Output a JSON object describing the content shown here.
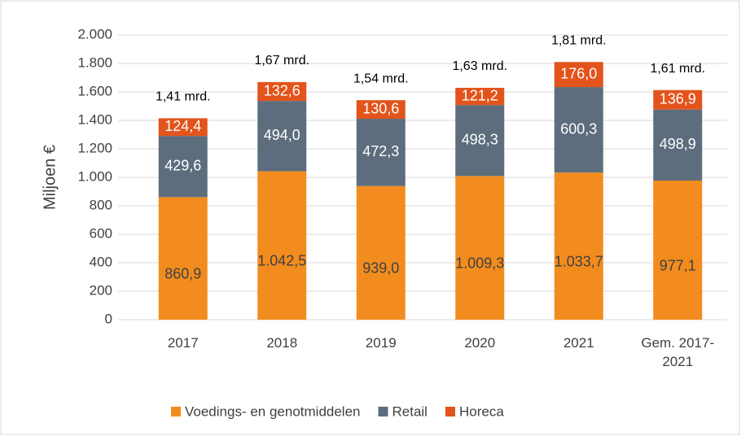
{
  "chart_data": {
    "type": "stacked_bar",
    "categories": [
      "2017",
      "2018",
      "2019",
      "2020",
      "2021",
      "Gem. 2017-2021"
    ],
    "series": [
      {
        "name": "Voedings- en genotmiddelen",
        "color": "#f28c1e",
        "values": [
          860.9,
          1042.5,
          939.0,
          1009.3,
          1033.7,
          977.1
        ],
        "value_labels": [
          "860,9",
          "1.042,5",
          "939,0",
          "1.009,3",
          "1.033,7",
          "977,1"
        ]
      },
      {
        "name": "Retail",
        "color": "#5d6d7e",
        "values": [
          429.6,
          494.0,
          472.3,
          498.3,
          600.3,
          498.9
        ],
        "value_labels": [
          "429,6",
          "494,0",
          "472,3",
          "498,3",
          "600,3",
          "498,9"
        ]
      },
      {
        "name": "Horeca",
        "color": "#e2541b",
        "values": [
          124.4,
          132.6,
          130.6,
          121.2,
          176.0,
          136.9
        ],
        "value_labels": [
          "124,4",
          "132,6",
          "130,6",
          "121,2",
          "176,0",
          "136,9"
        ]
      }
    ],
    "annotations": [
      "1,41 mrd.",
      "1,67 mrd.",
      "1,54 mrd.",
      "1,63 mrd.",
      "1,81 mrd.",
      "1,61 mrd."
    ],
    "ylabel": "Miljoen €",
    "ylim": [
      0,
      2000
    ],
    "yticks": [
      0,
      200,
      400,
      600,
      800,
      {
        "value": 1000,
        "label": "1.000"
      },
      {
        "value": 1200,
        "label": "1.200"
      },
      {
        "value": 1400,
        "label": "1.400"
      },
      {
        "value": 1600,
        "label": "1.600"
      },
      {
        "value": 1800,
        "label": "1.800"
      },
      {
        "value": 2000,
        "label": "2.000"
      }
    ],
    "grid": true,
    "legend": "bottom"
  }
}
